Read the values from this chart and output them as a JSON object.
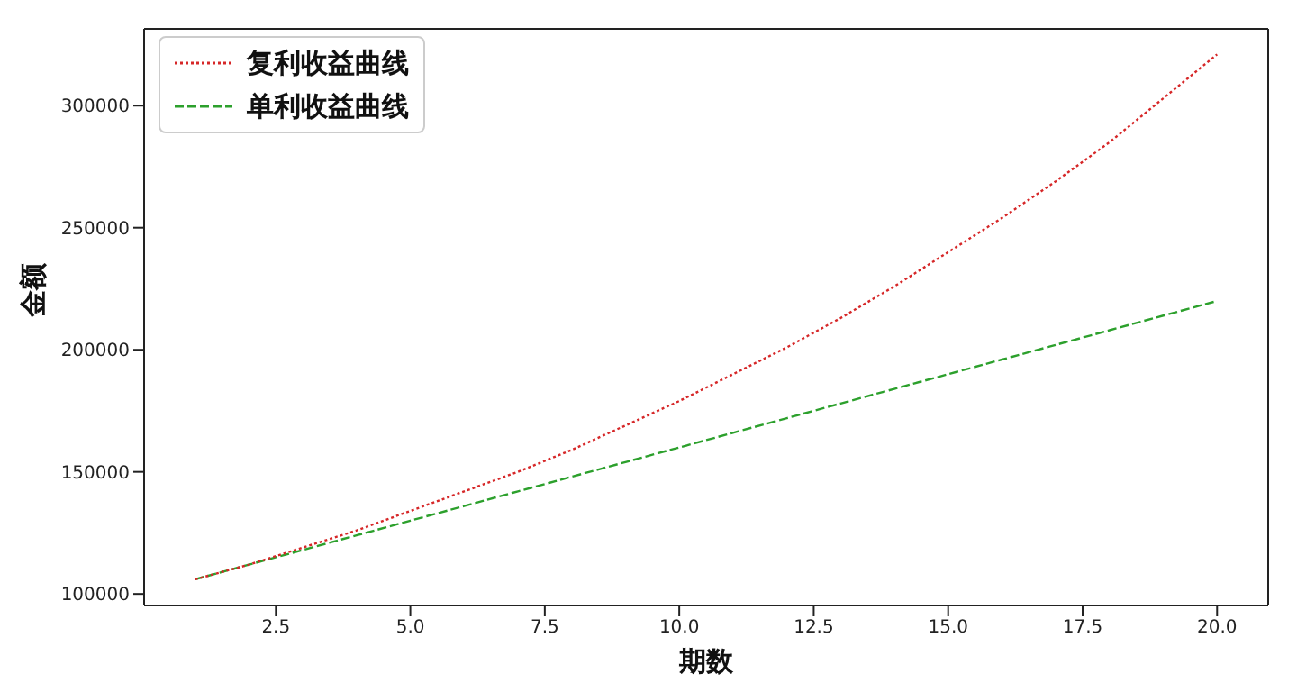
{
  "chart_data": {
    "type": "line",
    "xlabel": "期数",
    "ylabel": "金额",
    "x": [
      1,
      2,
      3,
      4,
      5,
      6,
      7,
      8,
      9,
      10,
      11,
      12,
      13,
      14,
      15,
      16,
      17,
      18,
      19,
      20
    ],
    "series": [
      {
        "name": "复利收益曲线",
        "color": "#d62728",
        "line_style": "dotted",
        "values": [
          106000,
          112000,
          119000,
          126000,
          134000,
          142000,
          150000,
          159000,
          169000,
          179000,
          190000,
          201000,
          213000,
          226000,
          240000,
          254000,
          269000,
          285000,
          303000,
          321000
        ]
      },
      {
        "name": "单利收益曲线",
        "color": "#2ca02c",
        "line_style": "dashed",
        "values": [
          106000,
          112000,
          118000,
          124000,
          130000,
          136000,
          142000,
          148000,
          154000,
          160000,
          166000,
          172000,
          178000,
          184000,
          190000,
          196000,
          202000,
          208000,
          214000,
          220000
        ]
      }
    ],
    "xlim": [
      0.05,
      20.95
    ],
    "xticks": [
      2.5,
      {
        "value": 5,
        "label": "5.0"
      },
      7.5,
      {
        "value": 10,
        "label": "10.0"
      },
      12.5,
      {
        "value": 15,
        "label": "15.0"
      },
      17.5,
      {
        "value": 20,
        "label": "20.0"
      }
    ],
    "ylim": [
      95264,
      331450
    ],
    "yticks": [
      100000,
      150000,
      200000,
      250000,
      300000
    ],
    "legend": "top left",
    "marker": "none",
    "grid": false
  }
}
